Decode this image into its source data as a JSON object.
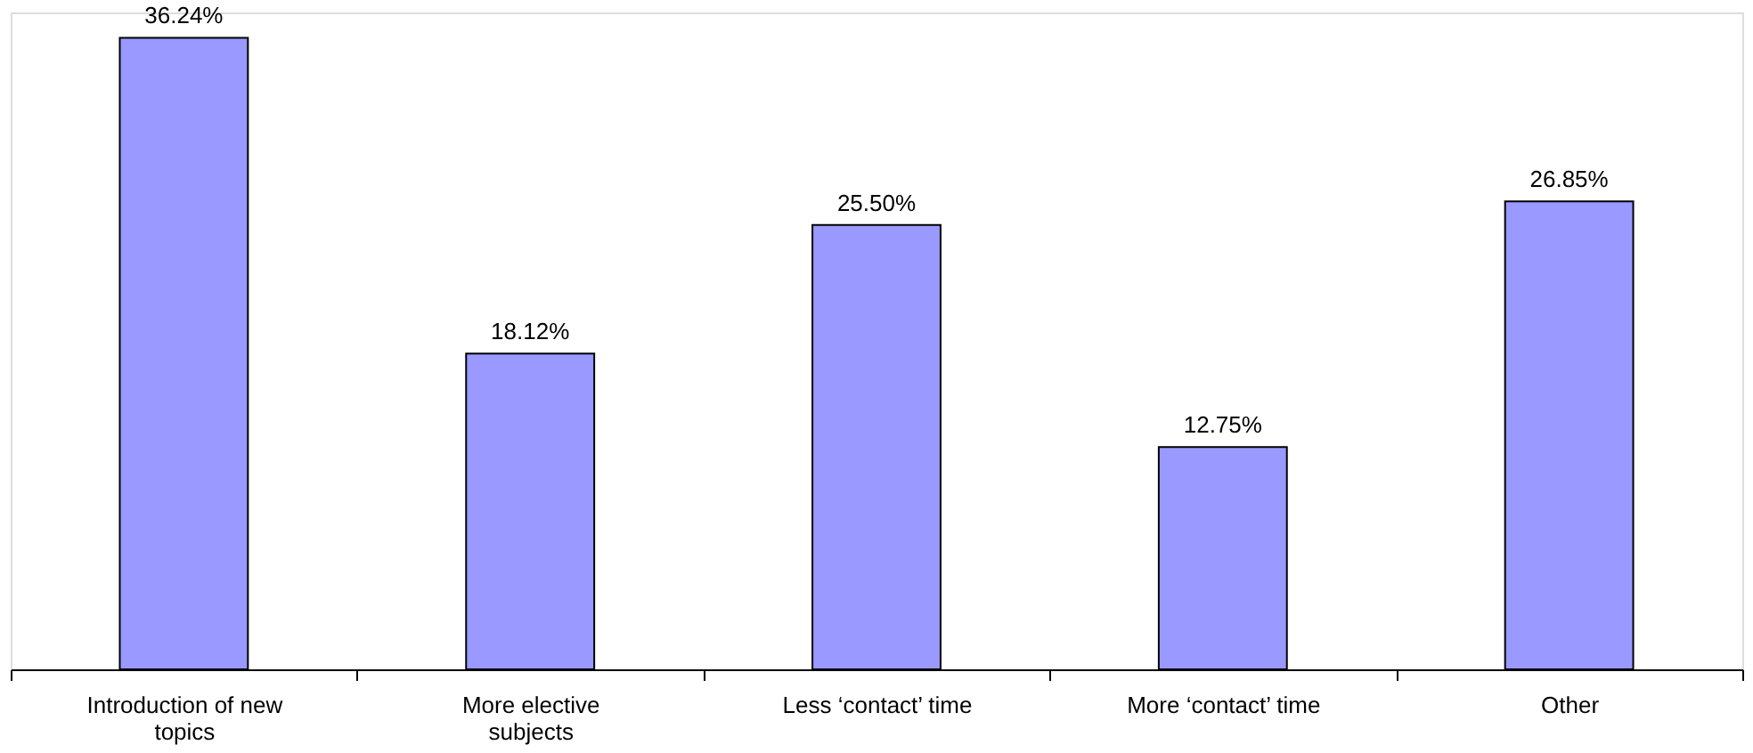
{
  "chart_data": {
    "type": "bar",
    "categories": [
      "Introduction of new topics",
      "More elective subjects",
      "Less ‘contact’ time",
      "More ‘contact’ time",
      "Other"
    ],
    "values": [
      36.24,
      18.12,
      25.5,
      12.75,
      26.85
    ],
    "value_labels": [
      "36.24%",
      "18.12%",
      "25.50%",
      "12.75%",
      "26.85%"
    ],
    "color": "#9999ff",
    "grid": false,
    "tick_labels": "x"
  }
}
